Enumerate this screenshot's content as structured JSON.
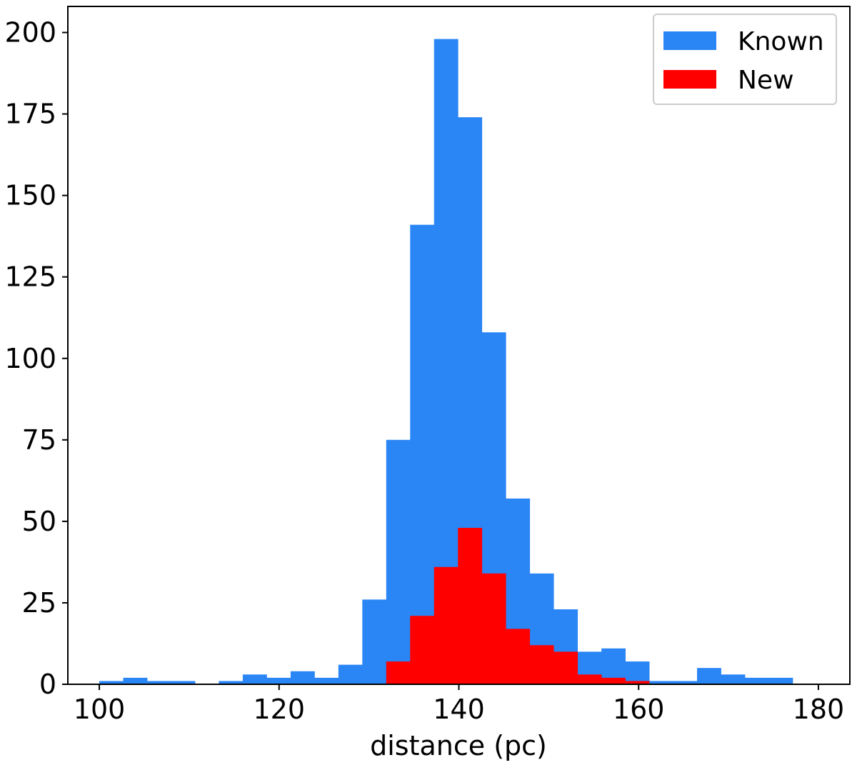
{
  "chart_data": {
    "type": "bar",
    "subtype": "histogram",
    "title": "",
    "xlabel": "distance (pc)",
    "ylabel": "",
    "xlim": [
      96.5,
      183.5
    ],
    "ylim": [
      0,
      208
    ],
    "xticks": [
      100,
      120,
      140,
      160,
      180
    ],
    "yticks": [
      0,
      25,
      50,
      75,
      100,
      125,
      150,
      175,
      200
    ],
    "grid": false,
    "legend_position": "top-right",
    "bin_width": 2.66,
    "series": [
      {
        "name": "Known",
        "color": "#2a85f5",
        "bin_starts": [
          100.0,
          102.66,
          105.32,
          107.98,
          110.64,
          113.3,
          115.96,
          118.62,
          121.28,
          123.94,
          126.6,
          129.26,
          131.92,
          134.58,
          137.24,
          139.9,
          142.56,
          145.22,
          147.88,
          150.54,
          153.2,
          155.86,
          158.52,
          161.18,
          163.84,
          166.5,
          169.16,
          171.82,
          174.48
        ],
        "values": [
          1,
          2,
          1,
          1,
          0,
          1,
          3,
          2,
          4,
          2,
          6,
          26,
          75,
          141,
          198,
          174,
          108,
          57,
          34,
          23,
          10,
          11,
          7,
          1,
          1,
          5,
          3,
          2,
          2
        ]
      },
      {
        "name": "New",
        "color": "#ff0000",
        "bin_starts": [
          131.92,
          134.58,
          137.24,
          139.9,
          142.56,
          145.22,
          147.88,
          150.54,
          153.2,
          155.86,
          158.52
        ],
        "values": [
          7,
          21,
          36,
          48,
          34,
          17,
          12,
          10,
          3,
          2,
          1
        ]
      }
    ]
  }
}
